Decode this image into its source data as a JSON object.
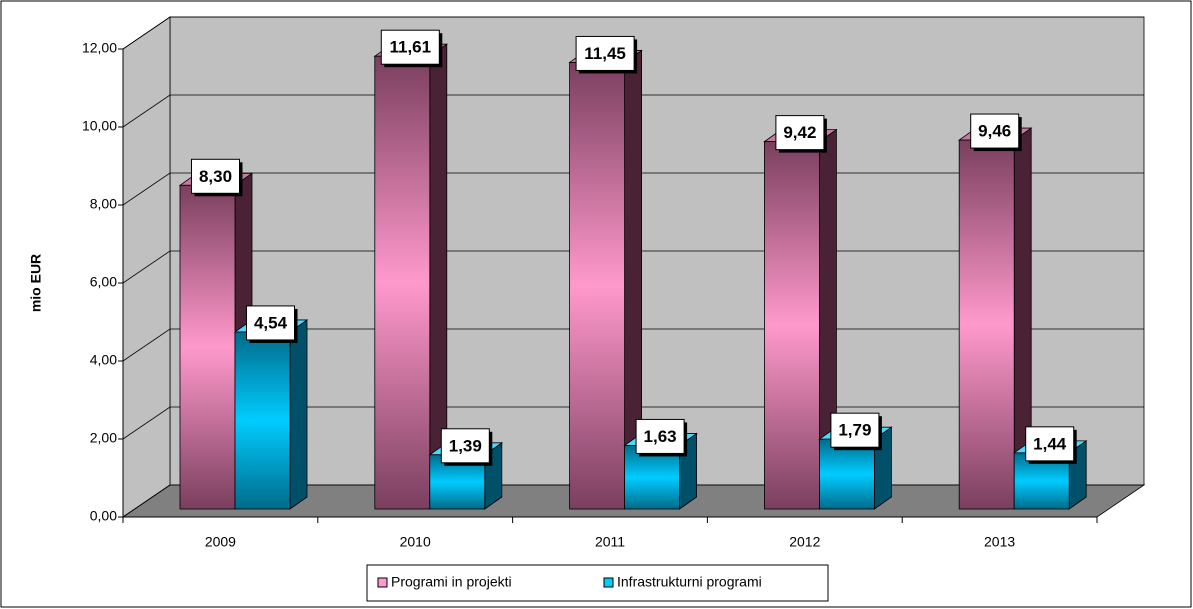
{
  "chart_data": {
    "type": "bar3d",
    "y_label": "mio EUR",
    "categories": [
      "2009",
      "2010",
      "2011",
      "2012",
      "2013"
    ],
    "series": [
      {
        "name": "Programi in projekti",
        "color": "#ff99cc",
        "values": [
          8.3,
          11.61,
          11.45,
          9.42,
          9.46
        ],
        "value_labels": [
          "8,30",
          "11,61",
          "11,45",
          "9,42",
          "9,46"
        ]
      },
      {
        "name": "Infrastrukturni programi",
        "color": "#00ccff",
        "values": [
          4.54,
          1.39,
          1.63,
          1.79,
          1.44
        ],
        "value_labels": [
          "4,54",
          "1,39",
          "1,63",
          "1,79",
          "1,44"
        ]
      }
    ],
    "ylim": [
      0,
      12
    ],
    "yticks": [
      {
        "value": 0,
        "label": "0,00"
      },
      {
        "value": 2,
        "label": "2,00"
      },
      {
        "value": 4,
        "label": "4,00"
      },
      {
        "value": 6,
        "label": "6,00"
      },
      {
        "value": 8,
        "label": "8,00"
      },
      {
        "value": 10,
        "label": "10,00"
      },
      {
        "value": 12,
        "label": "12,00"
      }
    ],
    "grid": true,
    "legend": "bottom"
  }
}
